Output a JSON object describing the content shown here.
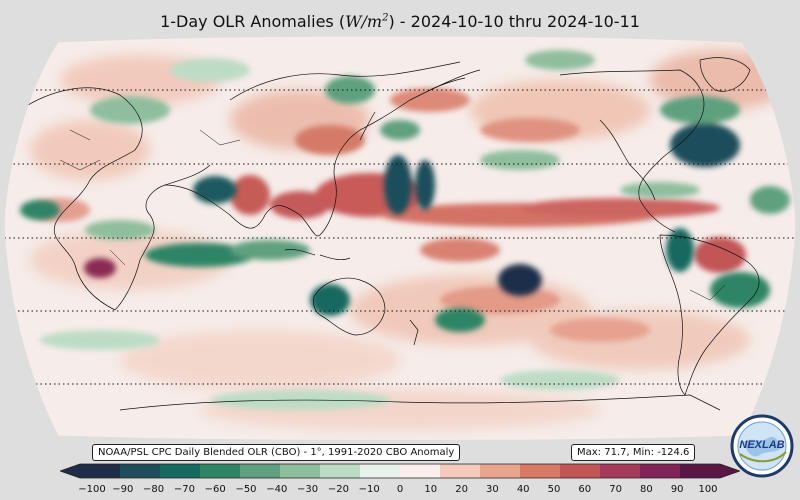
{
  "title": {
    "prefix": "1-Day OLR Anomalies (",
    "units_base": "W/m",
    "units_exp": "2",
    "suffix": ") - 2024-10-10 thru 2024-10-11"
  },
  "info_left": "NOAA/PSL CPC Daily Blended OLR (CBO) - 1°, 1991-2020 CBO Anomaly",
  "info_right": "Max: 71.7,  Min: -124.6",
  "colorbar": {
    "min": -100,
    "max": 100,
    "ticks": [
      "−100",
      "−90",
      "−80",
      "−70",
      "−60",
      "−50",
      "−40",
      "−30",
      "−20",
      "−10",
      "0",
      "10",
      "20",
      "30",
      "40",
      "50",
      "60",
      "70",
      "80",
      "90",
      "100"
    ],
    "colors": [
      "#1f2d48",
      "#1f4d5b",
      "#16695f",
      "#2f8466",
      "#5ea07f",
      "#8fbe9e",
      "#bddcc6",
      "#e6f2ea",
      "#fbefeb",
      "#f3cbbd",
      "#e7a48f",
      "#d67a66",
      "#c25556",
      "#a63a5a",
      "#82245a",
      "#5a1645"
    ]
  },
  "logo": {
    "text": "NEXLAB",
    "icon": "globe-logo-icon"
  },
  "map": {
    "projection": "Robinson",
    "central_longitude": 180,
    "parallels_dotted": [
      -60,
      -30,
      0,
      30,
      60
    ]
  }
}
